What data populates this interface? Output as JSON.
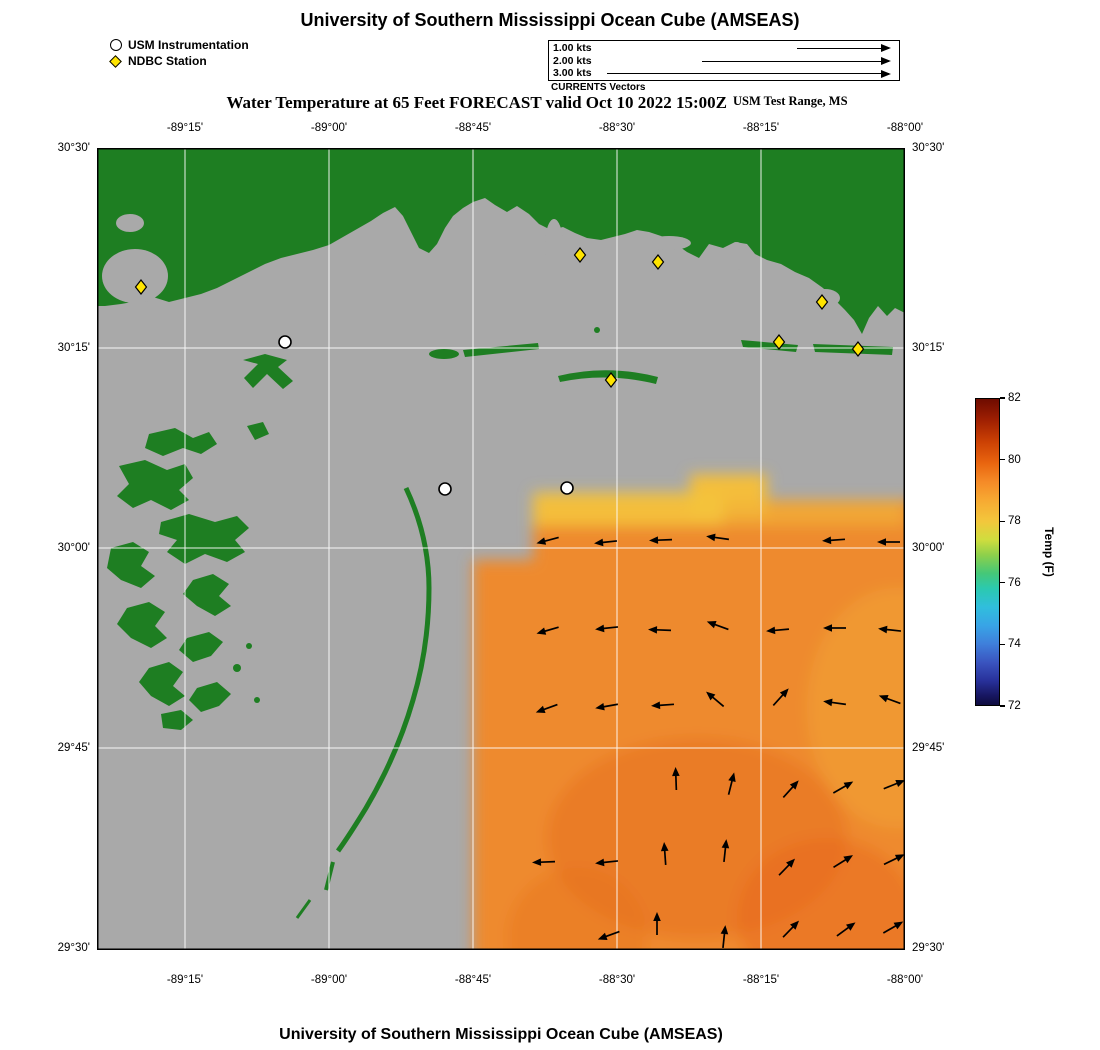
{
  "page": {
    "title_top": "University of Southern Mississippi Ocean Cube (AMSEAS)",
    "title_bottom": "University of Southern Mississippi Ocean Cube (AMSEAS)"
  },
  "subtitle": {
    "text": "Water Temperature at 65 Feet FORECAST valid Oct 10 2022 15:00Z",
    "range_label": "USM Test Range, MS"
  },
  "legend": {
    "usm_label": "USM Instrumentation",
    "ndbc_label": "NDBC Station"
  },
  "currents_legend": {
    "caption": "CURRENTS Vectors",
    "rows": [
      {
        "label": "1.00 kts"
      },
      {
        "label": "2.00 kts"
      },
      {
        "label": "3.00 kts"
      }
    ]
  },
  "axes": {
    "lon_ticks": [
      "-89°15'",
      "-89°00'",
      "-88°45'",
      "-88°30'",
      "-88°15'",
      "-88°00'"
    ],
    "lat_ticks": [
      "30°30'",
      "30°15'",
      "30°00'",
      "29°45'",
      "29°30'"
    ]
  },
  "colorbar": {
    "label": "Temp (F)",
    "ticks": [
      "82",
      "80",
      "78",
      "76",
      "74",
      "72"
    ],
    "min": 72,
    "max": 82
  },
  "colors": {
    "land_green": "#1e7e22",
    "water_gray": "#a9a9a9",
    "ndbc_yellow": "#ffe400",
    "temp_orange": "#ee8a2f"
  },
  "map": {
    "stations": {
      "usm": [
        [
          188,
          194
        ],
        [
          348,
          341
        ],
        [
          470,
          340
        ]
      ],
      "ndbc": [
        [
          44,
          139
        ],
        [
          483,
          107
        ],
        [
          561,
          114
        ],
        [
          725,
          154
        ],
        [
          682,
          194
        ],
        [
          761,
          201
        ],
        [
          514,
          232
        ]
      ]
    },
    "current_arrows": [
      [
        452,
        392,
        195
      ],
      [
        510,
        394,
        186
      ],
      [
        565,
        392,
        182
      ],
      [
        622,
        390,
        172
      ],
      [
        738,
        392,
        184
      ],
      [
        793,
        394,
        180
      ],
      [
        452,
        482,
        196
      ],
      [
        511,
        480,
        186
      ],
      [
        564,
        482,
        178
      ],
      [
        622,
        478,
        160
      ],
      [
        682,
        482,
        185
      ],
      [
        739,
        480,
        180
      ],
      [
        794,
        482,
        174
      ],
      [
        451,
        560,
        200
      ],
      [
        511,
        558,
        190
      ],
      [
        567,
        557,
        184
      ],
      [
        619,
        552,
        140
      ],
      [
        683,
        550,
        48
      ],
      [
        739,
        555,
        172
      ],
      [
        794,
        552,
        160
      ],
      [
        579,
        632,
        92
      ],
      [
        634,
        637,
        76
      ],
      [
        693,
        642,
        48
      ],
      [
        745,
        640,
        30
      ],
      [
        796,
        637,
        22
      ],
      [
        448,
        714,
        182
      ],
      [
        511,
        714,
        186
      ],
      [
        568,
        707,
        94
      ],
      [
        628,
        704,
        84
      ],
      [
        689,
        720,
        46
      ],
      [
        745,
        714,
        32
      ],
      [
        796,
        712,
        26
      ],
      [
        513,
        787,
        200
      ],
      [
        560,
        777,
        90
      ],
      [
        627,
        790,
        84
      ],
      [
        693,
        782,
        46
      ],
      [
        748,
        782,
        36
      ],
      [
        795,
        780,
        30
      ]
    ]
  },
  "chart_data": {
    "type": "heatmap",
    "title": "Water Temperature at 65 Feet FORECAST valid Oct 10 2022 15:00Z",
    "colorbar_label": "Temp (F)",
    "colorbar_ticks": [
      82,
      80,
      78,
      76,
      74,
      72
    ],
    "lon_tick_values": [
      "-89°15'",
      "-89°00'",
      "-88°45'",
      "-88°30'",
      "-88°15'",
      "-88°00'"
    ],
    "lat_tick_values": [
      "30°30'",
      "30°15'",
      "30°00'",
      "29°45'",
      "29°30'"
    ],
    "station_counts": {
      "usm_instrumentation": 3,
      "ndbc_station": 7
    }
  }
}
